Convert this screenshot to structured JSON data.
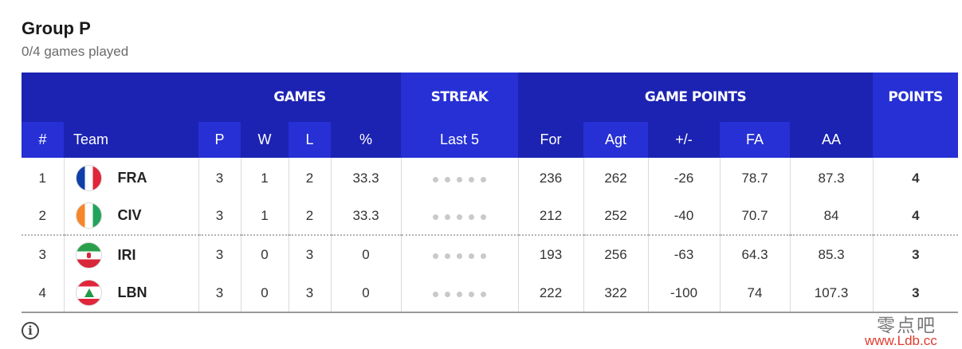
{
  "group": {
    "title": "Group P",
    "subtitle": "0/4 games played"
  },
  "colors": {
    "header_dark": "#1c23b2",
    "header_light": "#2630d4",
    "streak_dot": "#c9c9c9"
  },
  "header_groups": {
    "games": "GAMES",
    "streak": "STREAK",
    "game_points": "GAME POINTS",
    "points": "POINTS"
  },
  "columns": {
    "rank": "#",
    "team": "Team",
    "played": "P",
    "won": "W",
    "lost": "L",
    "pct": "%",
    "last5": "Last 5",
    "for": "For",
    "agt": "Agt",
    "diff": "+/-",
    "fa": "FA",
    "aa": "AA"
  },
  "rows": [
    {
      "rank": "1",
      "flag": "france-flag",
      "code": "FRA",
      "p": "3",
      "w": "1",
      "l": "2",
      "pct": "33.3",
      "for": "236",
      "agt": "262",
      "diff": "-26",
      "fa": "78.7",
      "aa": "87.3",
      "pts": "4"
    },
    {
      "rank": "2",
      "flag": "ivory-coast-flag",
      "code": "CIV",
      "p": "3",
      "w": "1",
      "l": "2",
      "pct": "33.3",
      "for": "212",
      "agt": "252",
      "diff": "-40",
      "fa": "70.7",
      "aa": "84",
      "pts": "4"
    },
    {
      "rank": "3",
      "flag": "iran-flag",
      "code": "IRI",
      "p": "3",
      "w": "0",
      "l": "3",
      "pct": "0",
      "for": "193",
      "agt": "256",
      "diff": "-63",
      "fa": "64.3",
      "aa": "85.3",
      "pts": "3"
    },
    {
      "rank": "4",
      "flag": "lebanon-flag",
      "code": "LBN",
      "p": "3",
      "w": "0",
      "l": "3",
      "pct": "0",
      "for": "222",
      "agt": "322",
      "diff": "-100",
      "fa": "74",
      "aa": "107.3",
      "pts": "3"
    }
  ],
  "footer": {
    "info_icon": "info-icon"
  },
  "watermark": {
    "cn": "零点吧",
    "url": "www.Ldb.cc"
  }
}
